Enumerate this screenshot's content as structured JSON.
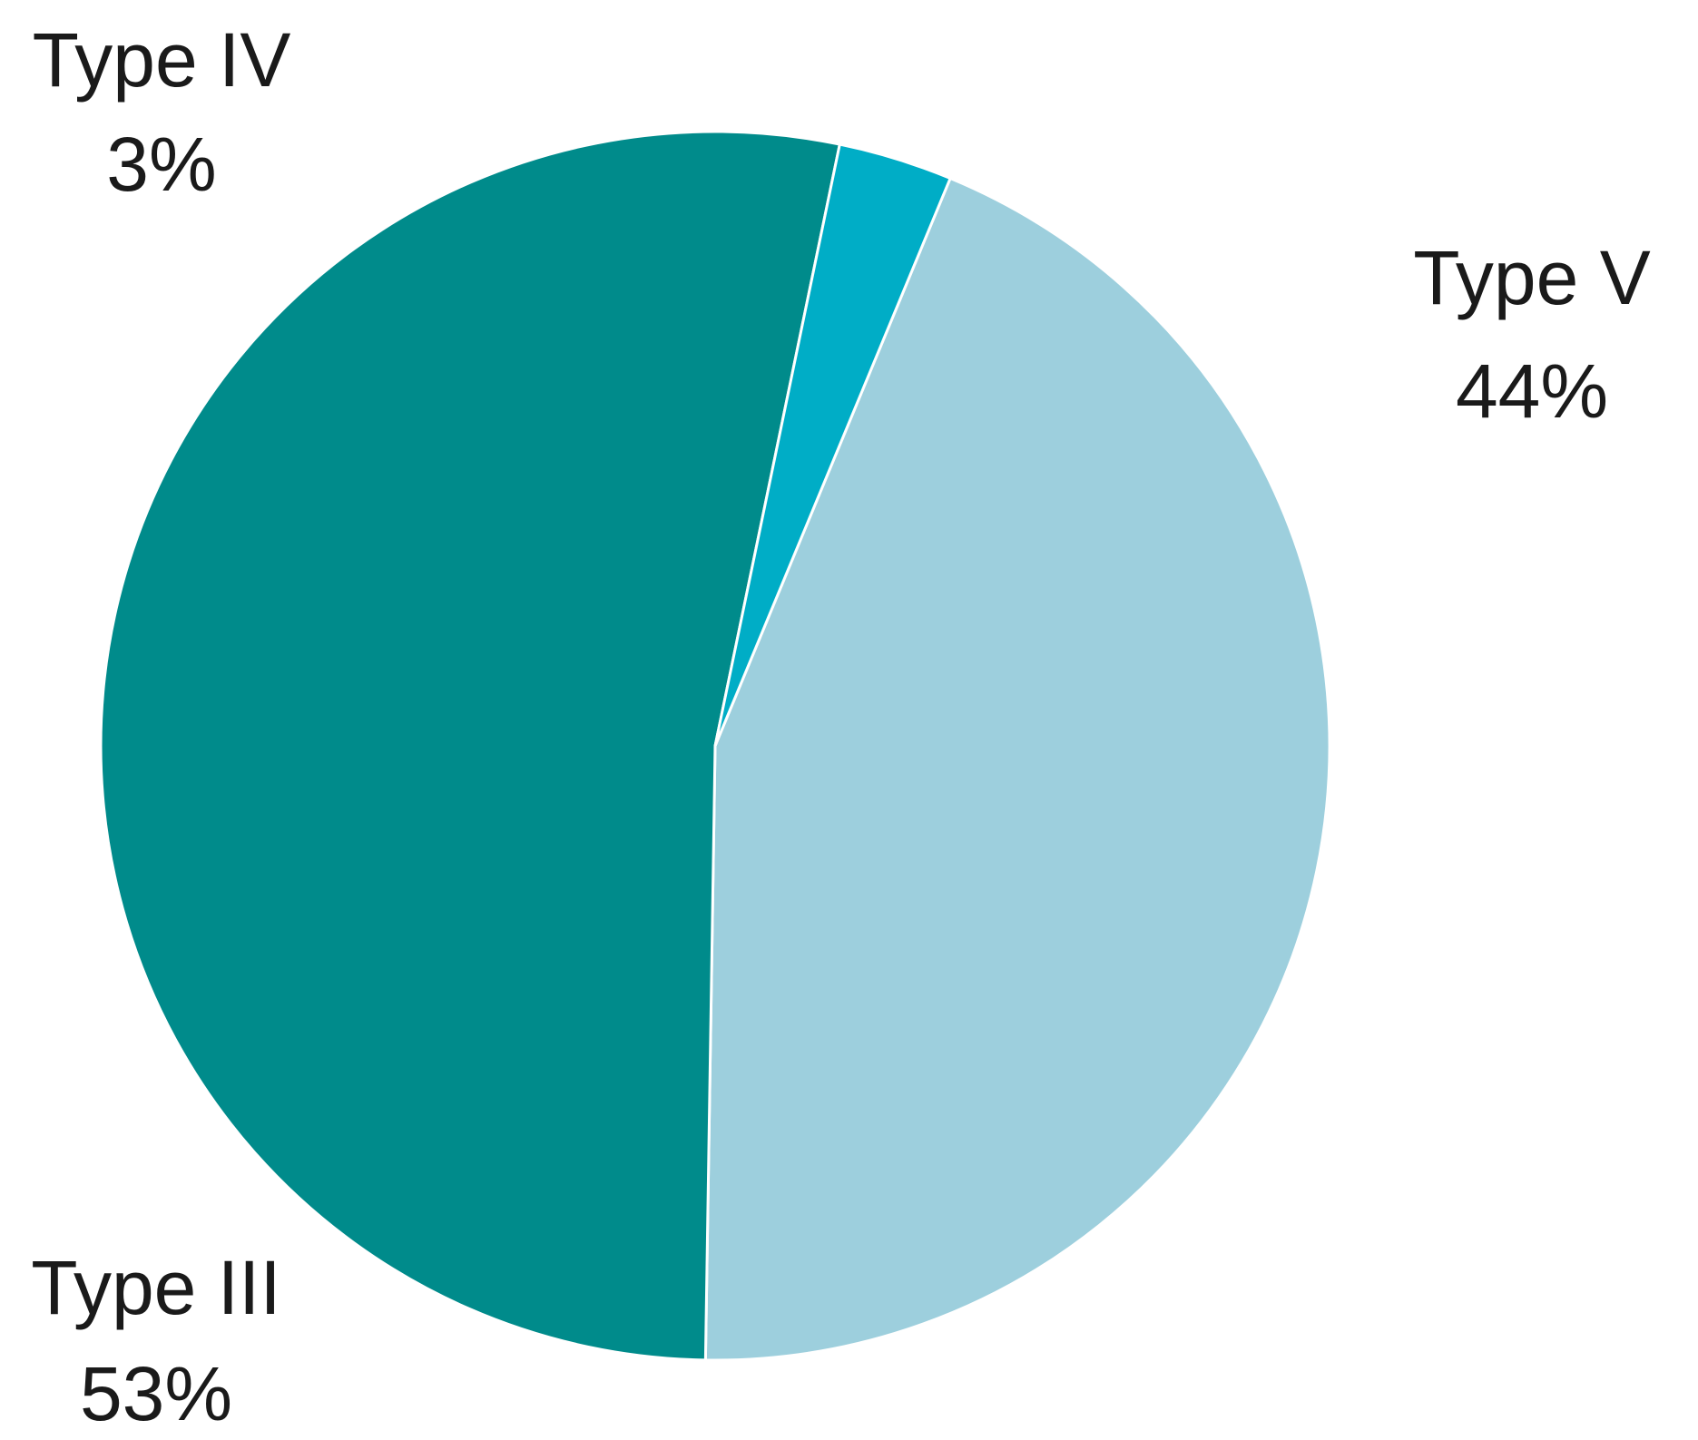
{
  "chart_data": {
    "type": "pie",
    "title": "",
    "slices": [
      {
        "label": "Type V",
        "percent_label": "44%",
        "value": 44,
        "color": "#9dcfdd"
      },
      {
        "label": "Type III",
        "percent_label": "53%",
        "value": 53,
        "color": "#008b8b"
      },
      {
        "label": "Type IV",
        "percent_label": "3%",
        "value": 3,
        "color": "#00adc6"
      }
    ],
    "legend": "none"
  }
}
